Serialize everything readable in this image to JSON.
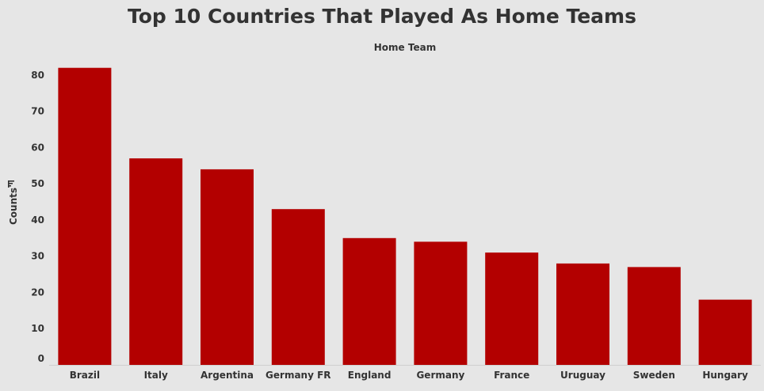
{
  "chart_data": {
    "type": "bar",
    "title": "Top 10 Countries That Played As Home Teams",
    "xlabel": "Home Team",
    "ylabel": "Counts",
    "categories": [
      "Brazil",
      "Italy",
      "Argentina",
      "Germany FR",
      "England",
      "Germany",
      "France",
      "Uruguay",
      "Sweden",
      "Hungary"
    ],
    "values": [
      82,
      57,
      54,
      43,
      35,
      34,
      31,
      28,
      27,
      18
    ],
    "ylim": [
      0,
      85
    ],
    "yticks": [
      0,
      10,
      20,
      30,
      40,
      50,
      60,
      70,
      80
    ],
    "grid": false,
    "legend": "none",
    "bar_color": "#b30000",
    "background": "#e6e6e6",
    "sort_icon": "sort-descending-icon"
  }
}
